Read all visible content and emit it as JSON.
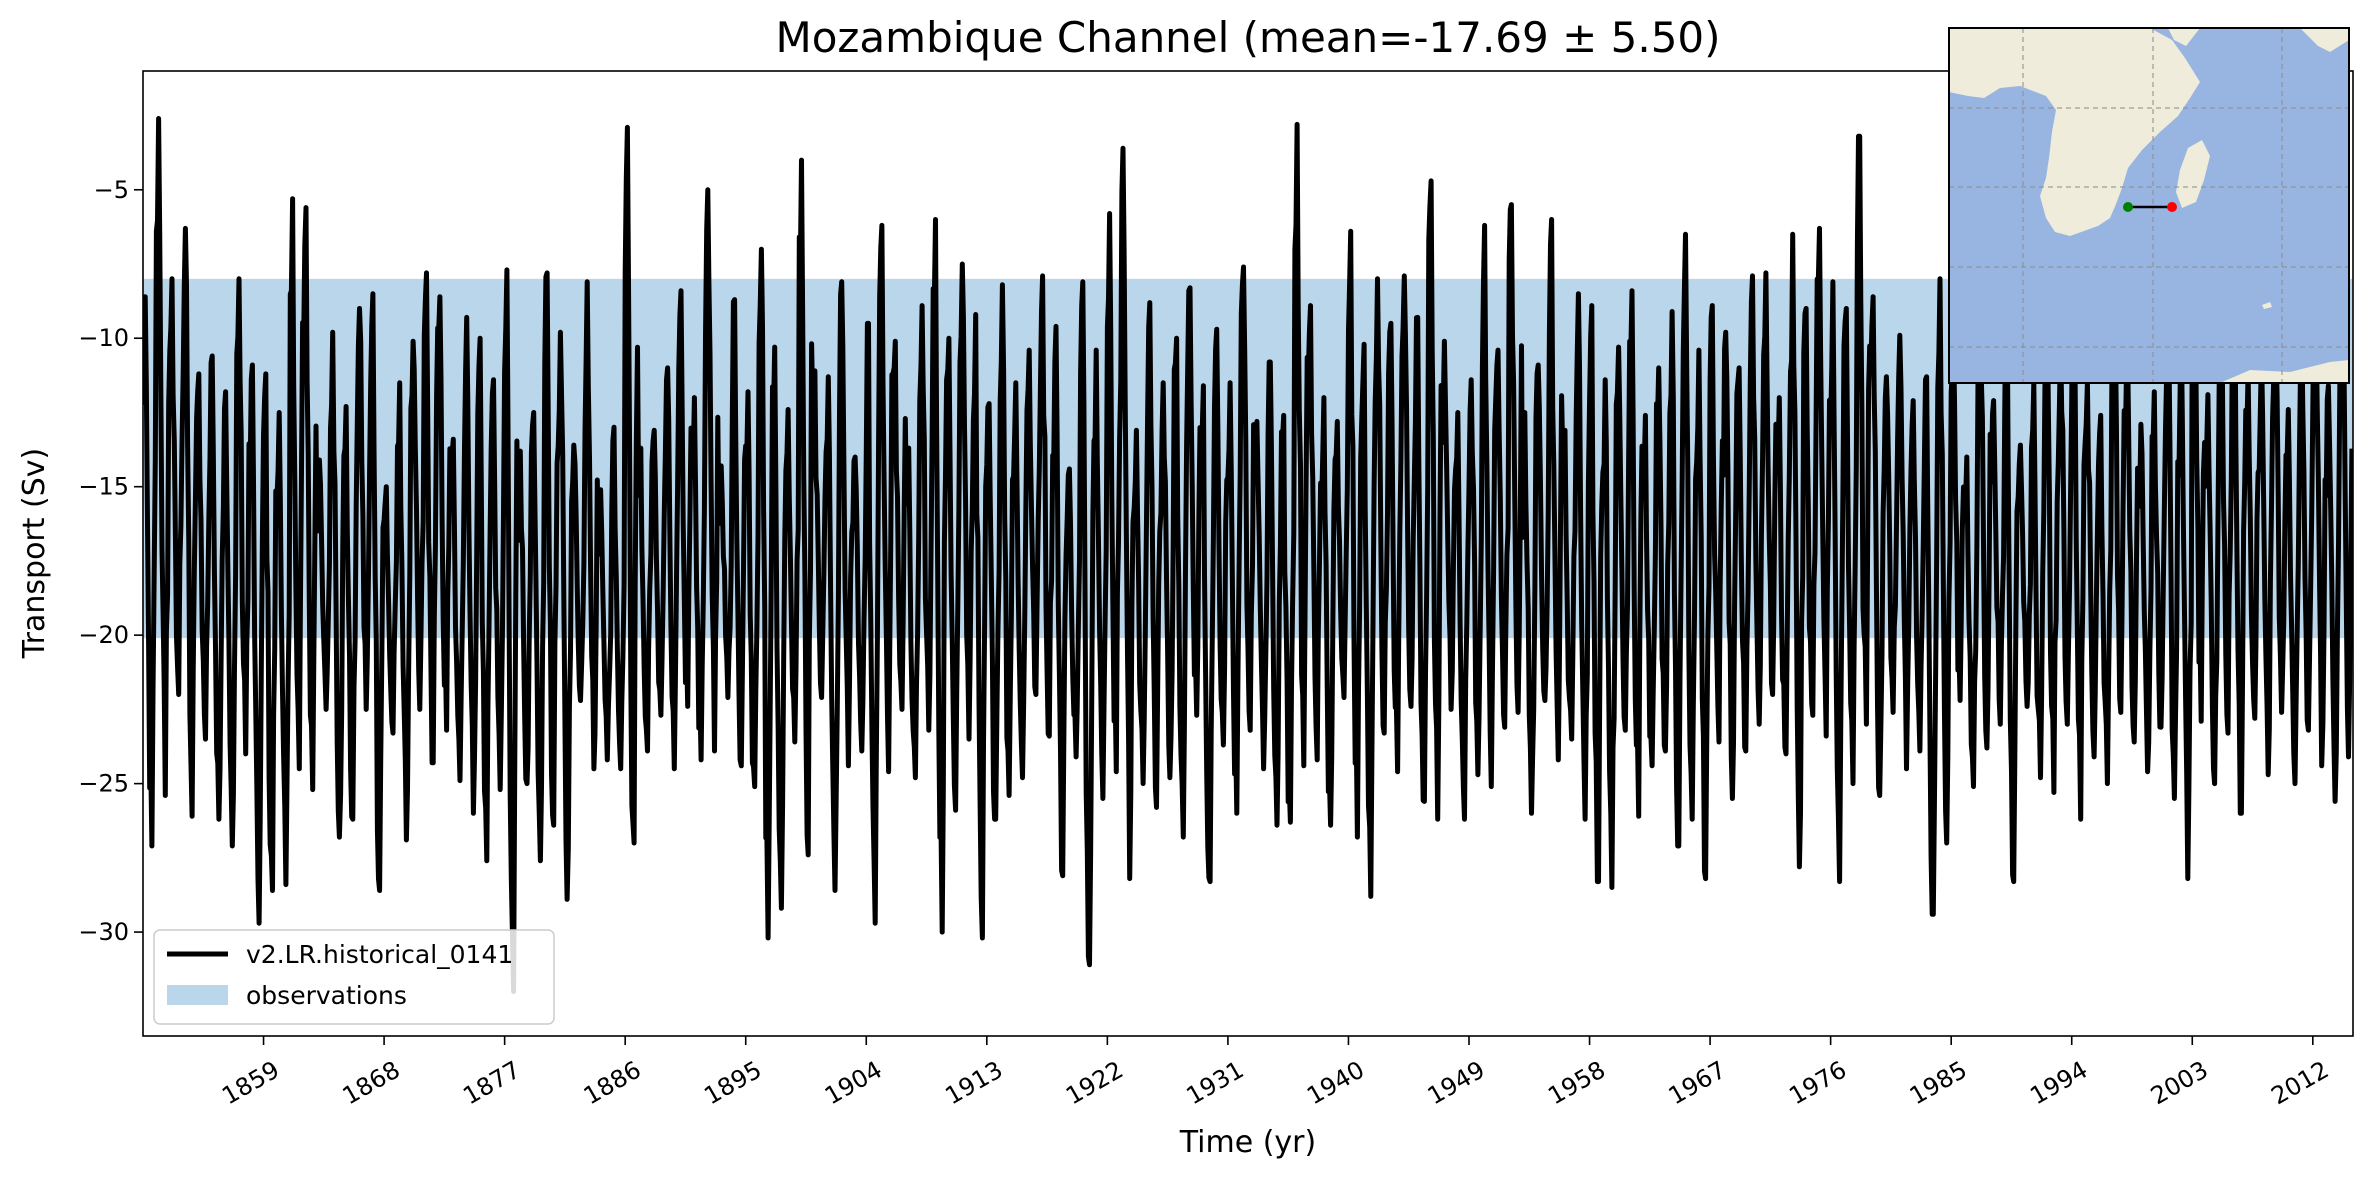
{
  "chart_data": {
    "type": "line",
    "title": "Mozambique Channel (mean=-17.69 ± 5.50)",
    "xlabel": "Time (yr)",
    "ylabel": "Transport (Sv)",
    "xlim": [
      1850,
      2015
    ],
    "ylim": [
      -33.5,
      -1.0
    ],
    "x_ticks": [
      1859,
      1868,
      1877,
      1886,
      1895,
      1904,
      1913,
      1922,
      1931,
      1940,
      1949,
      1958,
      1967,
      1976,
      1985,
      1994,
      2003,
      2012
    ],
    "y_ticks": [
      -5,
      -10,
      -15,
      -20,
      -25,
      -30
    ],
    "legend_placement": "lower-left",
    "observations_band": {
      "name": "observations",
      "ymin": -20.1,
      "ymax": -8.0,
      "color": "#bad6ea"
    },
    "series": [
      {
        "name": "v2.LR.historical_0141",
        "color": "#000000",
        "x_range": [
          1850,
          2015
        ],
        "sampling": "monthly",
        "mean": -17.69,
        "std": 5.5,
        "annual_min": [
          -27.1,
          -25.4,
          -22.0,
          -26.1,
          -23.5,
          -26.2,
          -27.1,
          -24.0,
          -29.7,
          -28.6,
          -28.4,
          -24.5,
          -25.2,
          -22.5,
          -26.8,
          -26.2,
          -22.5,
          -28.6,
          -23.3,
          -26.9,
          -22.5,
          -24.3,
          -23.2,
          -24.9,
          -26.0,
          -27.6,
          -25.2,
          -32.0,
          -25.0,
          -27.6,
          -26.4,
          -28.9,
          -22.2,
          -24.5,
          -24.2,
          -24.5,
          -27.0,
          -23.9,
          -22.7,
          -24.5,
          -22.4,
          -24.2,
          -23.9,
          -22.1,
          -24.4,
          -25.1,
          -30.2,
          -29.2,
          -23.6,
          -27.4,
          -22.1,
          -28.6,
          -24.4,
          -23.9,
          -29.7,
          -24.6,
          -22.5,
          -24.8,
          -23.2,
          -30.0,
          -25.9,
          -23.5,
          -30.2,
          -26.2,
          -25.4,
          -24.8,
          -22.0,
          -23.4,
          -28.1,
          -24.1,
          -31.1,
          -25.5,
          -24.6,
          -28.2,
          -25.0,
          -25.8,
          -24.8,
          -26.8,
          -22.7,
          -28.3,
          -23.7,
          -26.0,
          -23.2,
          -24.5,
          -26.4,
          -26.3,
          -24.4,
          -24.2,
          -26.4,
          -22.1,
          -26.8,
          -28.8,
          -23.3,
          -24.6,
          -22.4,
          -25.6,
          -26.2,
          -22.5,
          -26.2,
          -24.7,
          -25.1,
          -23.1,
          -22.6,
          -26.0,
          -22.2,
          -24.2,
          -23.5,
          -26.2,
          -28.3,
          -28.5,
          -23.2,
          -26.1,
          -24.4,
          -23.9,
          -27.1,
          -26.2,
          -28.2,
          -23.6,
          -25.5,
          -23.9,
          -23.0,
          -22.0,
          -24.0,
          -27.8,
          -22.7,
          -23.4,
          -28.3,
          -25.0,
          -23.0,
          -25.4,
          -22.6,
          -24.5,
          -23.9,
          -29.4,
          -27.0,
          -22.2,
          -25.1,
          -23.8,
          -23.0,
          -28.3,
          -22.4,
          -24.8,
          -25.3,
          -23.0,
          -26.2,
          -24.1,
          -25.0,
          -22.6,
          -23.6,
          -24.6,
          -23.1,
          -25.5,
          -28.2,
          -22.9,
          -25.0,
          -23.3,
          -26.0,
          -22.8,
          -24.7,
          -22.6,
          -25.0,
          -23.2,
          -24.4,
          -25.6,
          -24.1
        ],
        "annual_max": [
          -8.6,
          -2.6,
          -8.0,
          -6.3,
          -11.2,
          -10.6,
          -11.8,
          -8.0,
          -10.9,
          -11.2,
          -12.5,
          -5.3,
          -5.6,
          -14.1,
          -9.8,
          -12.3,
          -9.0,
          -8.5,
          -15.0,
          -11.5,
          -10.1,
          -7.8,
          -8.6,
          -13.4,
          -9.3,
          -10.0,
          -11.4,
          -7.7,
          -13.8,
          -12.5,
          -7.8,
          -9.8,
          -13.6,
          -8.1,
          -15.1,
          -13.0,
          -2.9,
          -13.7,
          -13.1,
          -11.0,
          -8.4,
          -12.0,
          -5.0,
          -14.3,
          -8.7,
          -11.8,
          -7.0,
          -10.3,
          -12.4,
          -4.0,
          -11.1,
          -11.3,
          -8.1,
          -14.0,
          -9.5,
          -6.2,
          -10.1,
          -13.7,
          -8.9,
          -6.0,
          -10.0,
          -7.5,
          -9.2,
          -12.2,
          -8.2,
          -11.5,
          -10.4,
          -7.9,
          -9.6,
          -14.4,
          -8.1,
          -10.4,
          -5.8,
          -3.6,
          -13.1,
          -8.8,
          -11.5,
          -10.0,
          -8.3,
          -11.6,
          -9.7,
          -11.5,
          -7.6,
          -12.8,
          -10.8,
          -12.6,
          -2.8,
          -8.9,
          -12.0,
          -12.8,
          -6.4,
          -10.2,
          -8.0,
          -9.5,
          -7.9,
          -9.3,
          -4.7,
          -10.1,
          -12.5,
          -11.4,
          -6.2,
          -10.4,
          -5.5,
          -12.5,
          -10.9,
          -6.0,
          -13.1,
          -8.5,
          -8.9,
          -11.4,
          -10.3,
          -8.4,
          -12.6,
          -11.0,
          -9.1,
          -6.5,
          -10.4,
          -8.9,
          -9.8,
          -11.0,
          -7.9,
          -7.8,
          -12.0,
          -6.5,
          -9.0,
          -6.3,
          -8.1,
          -9.0,
          -3.2,
          -8.6,
          -11.3,
          -9.9,
          -12.1,
          -11.3,
          -8.0,
          -9.8,
          -14.0,
          -7.6,
          -12.1,
          -8.2,
          -13.6,
          -11.5,
          -8.4,
          -10.0,
          -7.9,
          -11.5,
          -12.6,
          -7.8,
          -10.0,
          -12.9,
          -11.8,
          -8.1,
          -9.3,
          -7.1,
          -11.9,
          -8.4,
          -7.6,
          -11.1,
          -10.4,
          -8.3,
          -12.4,
          -9.6,
          -6.8,
          -11.6,
          -6.1
        ]
      },
      {
        "name": "observations",
        "type": "band",
        "color": "#bad6ea"
      }
    ]
  },
  "inset_map": {
    "land_color": "#efecdc",
    "ocean_color": "#98b5e2",
    "section_start_color": "#008000",
    "section_end_color": "#ff0000"
  }
}
